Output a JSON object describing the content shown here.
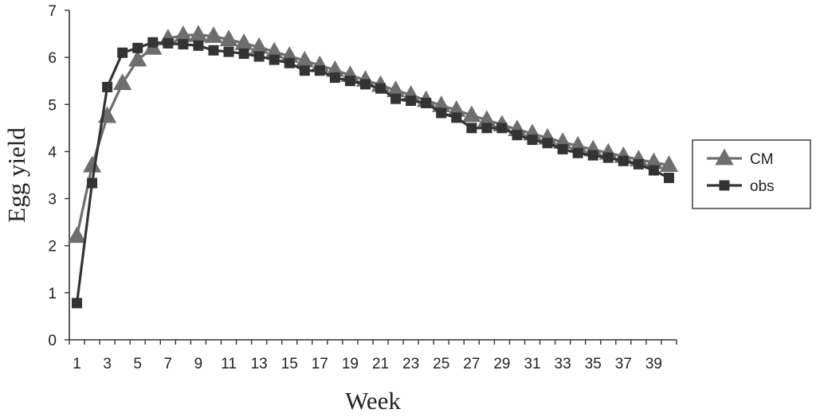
{
  "chart_data": {
    "type": "line",
    "title": "",
    "xlabel": "Week",
    "ylabel": "Egg yield",
    "x": [
      1,
      2,
      3,
      4,
      5,
      6,
      7,
      8,
      9,
      10,
      11,
      12,
      13,
      14,
      15,
      16,
      17,
      18,
      19,
      20,
      21,
      22,
      23,
      24,
      25,
      26,
      27,
      28,
      29,
      30,
      31,
      32,
      33,
      34,
      35,
      36,
      37,
      38,
      39,
      40
    ],
    "x_tick_labels": [
      "1",
      "3",
      "5",
      "7",
      "9",
      "11",
      "13",
      "15",
      "17",
      "19",
      "21",
      "23",
      "25",
      "27",
      "29",
      "31",
      "33",
      "35",
      "37",
      "39"
    ],
    "xlim": [
      0.5,
      40.5
    ],
    "ylim": [
      0,
      7
    ],
    "y_ticks": [
      0,
      1,
      2,
      3,
      4,
      5,
      6,
      7
    ],
    "grid": false,
    "legend_position": "right",
    "series": [
      {
        "name": "CM",
        "marker": "triangle",
        "color": "#6e6e6e",
        "values": [
          2.2,
          3.7,
          4.75,
          5.45,
          5.95,
          6.2,
          6.4,
          6.47,
          6.48,
          6.45,
          6.38,
          6.3,
          6.22,
          6.12,
          6.03,
          5.93,
          5.83,
          5.73,
          5.62,
          5.52,
          5.41,
          5.3,
          5.2,
          5.09,
          4.98,
          4.88,
          4.77,
          4.67,
          4.57,
          4.47,
          4.38,
          4.29,
          4.2,
          4.12,
          4.04,
          3.97,
          3.9,
          3.83,
          3.77,
          3.71
        ]
      },
      {
        "name": "obs",
        "marker": "square",
        "color": "#333333",
        "values": [
          0.78,
          3.33,
          5.37,
          6.1,
          6.2,
          6.32,
          6.3,
          6.28,
          6.25,
          6.15,
          6.12,
          6.08,
          6.02,
          5.95,
          5.88,
          5.72,
          5.72,
          5.57,
          5.5,
          5.43,
          5.34,
          5.12,
          5.08,
          5.03,
          4.82,
          4.72,
          4.5,
          4.5,
          4.5,
          4.35,
          4.25,
          4.18,
          4.05,
          3.97,
          3.92,
          3.87,
          3.8,
          3.73,
          3.6,
          3.44
        ]
      }
    ]
  }
}
